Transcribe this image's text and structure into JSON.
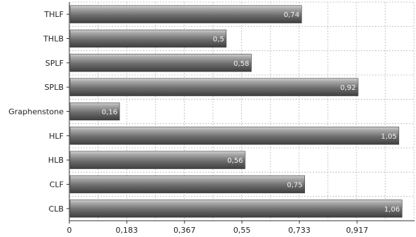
{
  "chart_data": {
    "type": "bar",
    "orientation": "horizontal",
    "title": "",
    "xlabel": "",
    "ylabel": "",
    "categories": [
      "THLF",
      "THLB",
      "SPLF",
      "SPLB",
      "Graphenstone",
      "HLF",
      "HLB",
      "CLF",
      "CLB"
    ],
    "values": [
      0.74,
      0.5,
      0.58,
      0.92,
      0.16,
      1.05,
      0.56,
      0.75,
      1.06
    ],
    "value_labels": [
      "0,74",
      "0,5",
      "0,58",
      "0,92",
      "0,16",
      "1,05",
      "0,56",
      "0,75",
      "1,06"
    ],
    "xlim": [
      0,
      1.1
    ],
    "xticks": [
      0,
      0.183,
      0.367,
      0.55,
      0.733,
      0.917
    ],
    "xtick_labels": [
      "0",
      "0,183",
      "0,367",
      "0,55",
      "0,733",
      "0,917"
    ],
    "grid": true,
    "bar_color_dark": "#4a4a4a",
    "bar_color_light": "#a8a8a8",
    "grid_color": "#b8b8b8"
  }
}
